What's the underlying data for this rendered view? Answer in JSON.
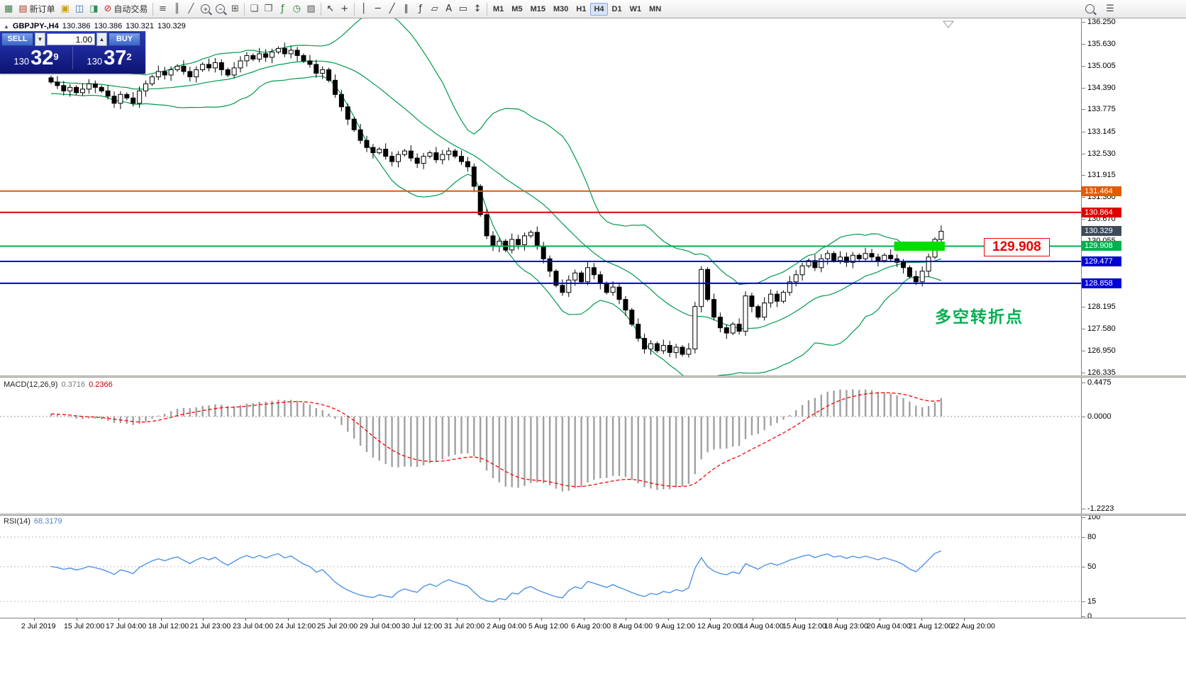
{
  "toolbar": {
    "buttons": [
      {
        "name": "new-chart-button",
        "glyph": "▦",
        "color": "#3a7d44"
      },
      {
        "name": "new-order-button",
        "label": "新订单",
        "glyph": "▤",
        "color": "#b03a2e"
      },
      {
        "name": "profiles-button",
        "glyph": "▣",
        "color": "#c8a200"
      },
      {
        "name": "market-watch-button",
        "glyph": "◫",
        "color": "#3b6fb5"
      },
      {
        "name": "navigator-button",
        "glyph": "◨",
        "color": "#2e8b57"
      },
      {
        "name": "autotrade-button",
        "label": "自动交易",
        "glyph": "⊘",
        "color": "#cc2222"
      },
      {
        "sep": true
      },
      {
        "name": "bar-chart-button",
        "glyph": "≡",
        "color": "#555555"
      },
      {
        "name": "candle-chart-button",
        "glyph": "║",
        "color": "#555555"
      },
      {
        "name": "line-chart-button",
        "glyph": "╱",
        "color": "#555555"
      },
      {
        "name": "zoom-in-button",
        "glyph": "+",
        "lens": true
      },
      {
        "name": "zoom-out-button",
        "glyph": "−",
        "lens": true
      },
      {
        "name": "grid-button",
        "glyph": "⊞",
        "color": "#555555"
      },
      {
        "sep": true
      },
      {
        "name": "tile-windows-button",
        "glyph": "❏",
        "color": "#555555"
      },
      {
        "name": "cascade-windows-button",
        "glyph": "❐",
        "color": "#555555"
      },
      {
        "name": "indicators-button",
        "glyph": "ƒ",
        "color": "#2e7d32"
      },
      {
        "name": "period-button",
        "glyph": "◷",
        "color": "#2e7d32"
      },
      {
        "name": "chart-settings-button",
        "glyph": "▧",
        "color": "#555555"
      },
      {
        "sep": true
      },
      {
        "name": "cursor-button",
        "glyph": "↖",
        "color": "#333333"
      },
      {
        "name": "crosshair-button",
        "glyph": "+",
        "color": "#333333"
      },
      {
        "sep": true
      },
      {
        "name": "vertical-line-button",
        "glyph": "│",
        "color": "#333333"
      },
      {
        "name": "horizontal-line-button",
        "glyph": "─",
        "color": "#333333"
      },
      {
        "name": "trendline-button",
        "glyph": "╱",
        "color": "#333333"
      },
      {
        "name": "channel-button",
        "glyph": "∥",
        "color": "#333333"
      },
      {
        "name": "fibonacci-button",
        "glyph": "ƒ",
        "color": "#333333"
      },
      {
        "name": "shapes-button",
        "glyph": "▱",
        "color": "#333333"
      },
      {
        "name": "text-button",
        "glyph": "A",
        "color": "#333333"
      },
      {
        "name": "label-button",
        "glyph": "▭",
        "color": "#333333"
      },
      {
        "name": "arrows-button",
        "glyph": "↕",
        "color": "#333333"
      },
      {
        "sep": true
      }
    ],
    "timeframes": [
      "M1",
      "M5",
      "M15",
      "M30",
      "H1",
      "H4",
      "D1",
      "W1",
      "MN"
    ],
    "active_timeframe": "H4",
    "right_buttons": [
      {
        "name": "search-button",
        "lens": true,
        "glyph": ""
      },
      {
        "name": "menu-button",
        "glyph": "☰",
        "color": "#444444"
      }
    ]
  },
  "chart_header": {
    "collapse_glyph": "▲",
    "symbol": "GBPJPY-,H4",
    "open": "130.386",
    "high": "130.386",
    "low": "130.321",
    "close": "130.329"
  },
  "trade_panel": {
    "sell_label": "SELL",
    "buy_label": "BUY",
    "volume": "1.00",
    "sell_price": {
      "prefix": "130",
      "big": "32",
      "sup": "9"
    },
    "buy_price": {
      "prefix": "130",
      "big": "37",
      "sup": "2"
    }
  },
  "time_axis": [
    "2 Jul 2019",
    "15 Jul 20:00",
    "17 Jul 04:00",
    "18 Jul 12:00",
    "21 Jul 23:00",
    "23 Jul 04:00",
    "24 Jul 12:00",
    "25 Jul 20:00",
    "29 Jul 04:00",
    "30 Jul 12:00",
    "31 Jul 20:00",
    "2 Aug 04:00",
    "5 Aug 12:00",
    "6 Aug 20:00",
    "8 Aug 04:00",
    "9 Aug 12:00",
    "12 Aug 20:00",
    "14 Aug 04:00",
    "15 Aug 12:00",
    "18 Aug 23:00",
    "20 Aug 04:00",
    "21 Aug 12:00",
    "22 Aug 20:00"
  ],
  "chart_data": [
    {
      "type": "candlestick",
      "symbol": "GBPJPY-,H4",
      "ylim": [
        126.25,
        136.35
      ],
      "y_ticks": [
        "136.250",
        "135.630",
        "135.005",
        "134.390",
        "133.775",
        "133.145",
        "132.530",
        "131.915",
        "131.300",
        "130.670",
        "130.055",
        "129.430",
        "128.815",
        "128.195",
        "127.580",
        "126.950",
        "126.335"
      ],
      "closes": [
        134.55,
        134.45,
        134.3,
        134.4,
        134.25,
        134.35,
        134.5,
        134.4,
        134.3,
        134.15,
        133.95,
        134.2,
        134.1,
        133.95,
        134.3,
        134.5,
        134.7,
        134.85,
        134.75,
        134.9,
        135.0,
        134.85,
        134.7,
        134.9,
        135.05,
        134.95,
        135.1,
        134.9,
        134.75,
        134.95,
        135.15,
        135.3,
        135.2,
        135.35,
        135.25,
        135.4,
        135.5,
        135.35,
        135.45,
        135.3,
        135.15,
        135.05,
        134.8,
        134.9,
        134.6,
        134.2,
        133.85,
        133.5,
        133.2,
        132.9,
        132.7,
        132.55,
        132.65,
        132.45,
        132.3,
        132.5,
        132.6,
        132.4,
        132.25,
        132.45,
        132.55,
        132.35,
        132.5,
        132.6,
        132.45,
        132.3,
        132.15,
        131.6,
        130.8,
        130.2,
        129.9,
        130.05,
        129.8,
        130.1,
        129.95,
        130.2,
        130.3,
        129.9,
        129.55,
        129.2,
        128.8,
        128.6,
        128.95,
        129.15,
        128.9,
        129.3,
        129.1,
        128.85,
        128.6,
        128.75,
        128.4,
        128.1,
        127.7,
        127.3,
        127.0,
        127.15,
        126.95,
        127.1,
        126.9,
        127.05,
        126.85,
        127.0,
        128.2,
        129.25,
        128.4,
        127.9,
        127.6,
        127.45,
        127.7,
        127.5,
        128.5,
        128.2,
        127.9,
        128.3,
        128.55,
        128.35,
        128.6,
        128.9,
        129.1,
        129.35,
        129.5,
        129.3,
        129.55,
        129.7,
        129.5,
        129.6,
        129.45,
        129.65,
        129.55,
        129.7,
        129.6,
        129.5,
        129.65,
        129.55,
        129.45,
        129.3,
        129.05,
        128.9,
        129.2,
        129.6,
        130.1,
        130.33
      ],
      "bollinger": {
        "period": 20,
        "deviation": 2,
        "color": "#009a4e"
      },
      "hlines": [
        {
          "price": 131.464,
          "label": "131.464",
          "color": "#e25b05"
        },
        {
          "price": 130.864,
          "label": "130.864",
          "color": "#dd0000"
        },
        {
          "price": 129.908,
          "label": "129.908",
          "color": "#00b050"
        },
        {
          "price": 129.477,
          "label": "129.477",
          "color": "#0000d8"
        },
        {
          "price": 128.858,
          "label": "128.858",
          "color": "#0000d8"
        }
      ],
      "current_price": "130.329",
      "current_tag_color": "#3c4a5a",
      "highlight": {
        "price": 129.908,
        "from_candle": 134,
        "to_candle": 141,
        "color": "#00dd00"
      },
      "annotation": {
        "text": "多空转折点",
        "color": "#00b050"
      },
      "callout": {
        "text": "129.908",
        "color": "#ee0000"
      }
    },
    {
      "type": "macd",
      "name": "MACD(12,26,9)",
      "value_main": "0.3716",
      "value_signal": "0.2366",
      "params": {
        "fast": 12,
        "slow": 26,
        "signal": 9
      },
      "y_ticks": [
        "0.4475",
        "0.0000",
        "-1.2223"
      ],
      "histogram_color": "#a0a0a0",
      "signal_color": "#ff0000"
    },
    {
      "type": "rsi",
      "name": "RSI(14)",
      "value": "68.3179",
      "period": 14,
      "ylim": [
        0,
        100
      ],
      "levels": [
        80,
        50,
        15
      ],
      "y_ticks": [
        "100",
        "80",
        "50",
        "15",
        "0"
      ],
      "line_color": "#4f94e8"
    }
  ]
}
